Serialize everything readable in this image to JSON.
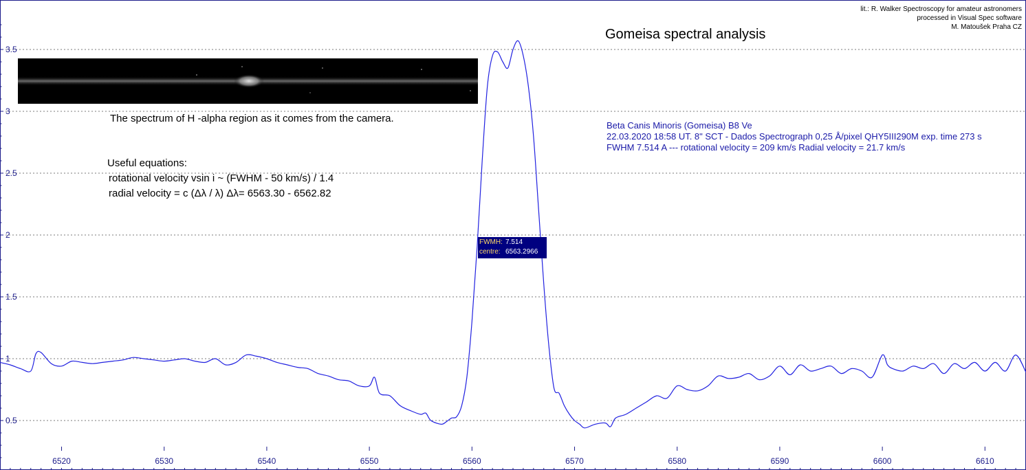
{
  "credits": {
    "line1": "lit.: R. Walker Spectroscopy for amateur astronomers",
    "line2": "processed in Visual Spec software",
    "line3": "M. Matoušek   Praha  CZ"
  },
  "title": "Gomeisa spectral analysis",
  "camera_caption": "The spectrum of H -alpha region as it comes from the camera.",
  "equations": {
    "heading": "Useful equations:",
    "rotational": "rotational velocity vsin i ~ (FWHM - 50 km/s) / 1.4",
    "radial": "radial velocity = c (Δλ / λ)      Δλ= 6563.30 - 6562.82"
  },
  "star_info": {
    "line1": "Beta Canis Minoris (Gomeisa)  B8 Ve",
    "line2": "22.03.2020 18:58 UT. 8\" SCT - Dados Spectrograph  0,25 Å/pixel   QHY5III290M exp. time 273 s",
    "line3": "FWHM 7.514 A --- rotational velocity = 209 km/s     Radial velocity = 21.7 km/s"
  },
  "fwhm_box": {
    "fwhm_label": "FWMH:",
    "fwhm_value": "7.514",
    "centre_label": "centre:",
    "centre_value": "6563.2966"
  },
  "colors": {
    "axis": "#1b1b8a",
    "line": "#2020e0",
    "grid": "#7a7a7a",
    "text_info": "#1a1aa8",
    "box": "#000080"
  },
  "chart_data": {
    "type": "line",
    "xlim": [
      6514,
      6614
    ],
    "ylim": [
      0.1,
      3.9
    ],
    "xticks": [
      6520,
      6530,
      6540,
      6550,
      6560,
      6570,
      6580,
      6590,
      6600,
      6610
    ],
    "yticks": [
      0.5,
      1,
      1.5,
      2,
      2.5,
      3,
      3.5
    ],
    "grid": "horizontal dashed",
    "series": [
      {
        "x": [
          6514,
          6515,
          6516,
          6517,
          6517.5,
          6518,
          6519,
          6520,
          6521,
          6522,
          6523,
          6524,
          6525,
          6526,
          6527,
          6528,
          6529,
          6530,
          6531,
          6532,
          6533,
          6534,
          6535,
          6536,
          6537,
          6538,
          6539,
          6540,
          6541,
          6542,
          6543,
          6544,
          6545,
          6546,
          6547,
          6548,
          6549,
          6550,
          6550.5,
          6551,
          6552,
          6553,
          6554,
          6555,
          6555.5,
          6556,
          6557,
          6557.5,
          6558,
          6558.5,
          6559,
          6559.5,
          6560,
          6560.5,
          6561,
          6561.5,
          6562,
          6562.5,
          6563,
          6563.5,
          6564,
          6564.5,
          6565,
          6565.5,
          6566,
          6566.5,
          6567,
          6567.5,
          6568,
          6568.5,
          6569,
          6569.5,
          6570,
          6570.5,
          6571,
          6572,
          6573,
          6573.5,
          6574,
          6575,
          6576,
          6577,
          6578,
          6579,
          6580,
          6581,
          6582,
          6583,
          6584,
          6585,
          6586,
          6587,
          6588,
          6589,
          6590,
          6591,
          6592,
          6593,
          6594,
          6595,
          6596,
          6597,
          6598,
          6599,
          6600,
          6600.5,
          6601,
          6602,
          6603,
          6604,
          6605,
          6606,
          6607,
          6608,
          6609,
          6610,
          6611,
          6612,
          6613,
          6614
        ],
        "y": [
          0.97,
          0.95,
          0.92,
          0.9,
          1.04,
          1.05,
          0.96,
          0.94,
          0.98,
          0.97,
          0.96,
          0.97,
          0.98,
          0.99,
          1.01,
          1.0,
          0.99,
          0.98,
          0.99,
          1.0,
          0.98,
          0.97,
          1.0,
          0.95,
          0.97,
          1.03,
          1.02,
          1.0,
          0.97,
          0.95,
          0.93,
          0.92,
          0.88,
          0.86,
          0.83,
          0.82,
          0.78,
          0.78,
          0.85,
          0.72,
          0.7,
          0.62,
          0.58,
          0.55,
          0.56,
          0.5,
          0.47,
          0.49,
          0.52,
          0.53,
          0.62,
          0.85,
          1.3,
          1.9,
          2.6,
          3.2,
          3.45,
          3.48,
          3.4,
          3.35,
          3.5,
          3.57,
          3.45,
          3.2,
          2.8,
          2.2,
          1.6,
          1.1,
          0.76,
          0.72,
          0.62,
          0.55,
          0.5,
          0.47,
          0.44,
          0.47,
          0.48,
          0.45,
          0.52,
          0.55,
          0.6,
          0.65,
          0.7,
          0.68,
          0.78,
          0.75,
          0.74,
          0.78,
          0.86,
          0.84,
          0.85,
          0.88,
          0.83,
          0.86,
          0.94,
          0.87,
          0.95,
          0.9,
          0.92,
          0.94,
          0.88,
          0.92,
          0.9,
          0.85,
          1.03,
          0.95,
          0.92,
          0.9,
          0.94,
          0.92,
          0.96,
          0.88,
          0.96,
          0.92,
          0.97,
          0.9,
          0.97,
          0.9,
          1.03,
          0.89
        ]
      }
    ]
  }
}
